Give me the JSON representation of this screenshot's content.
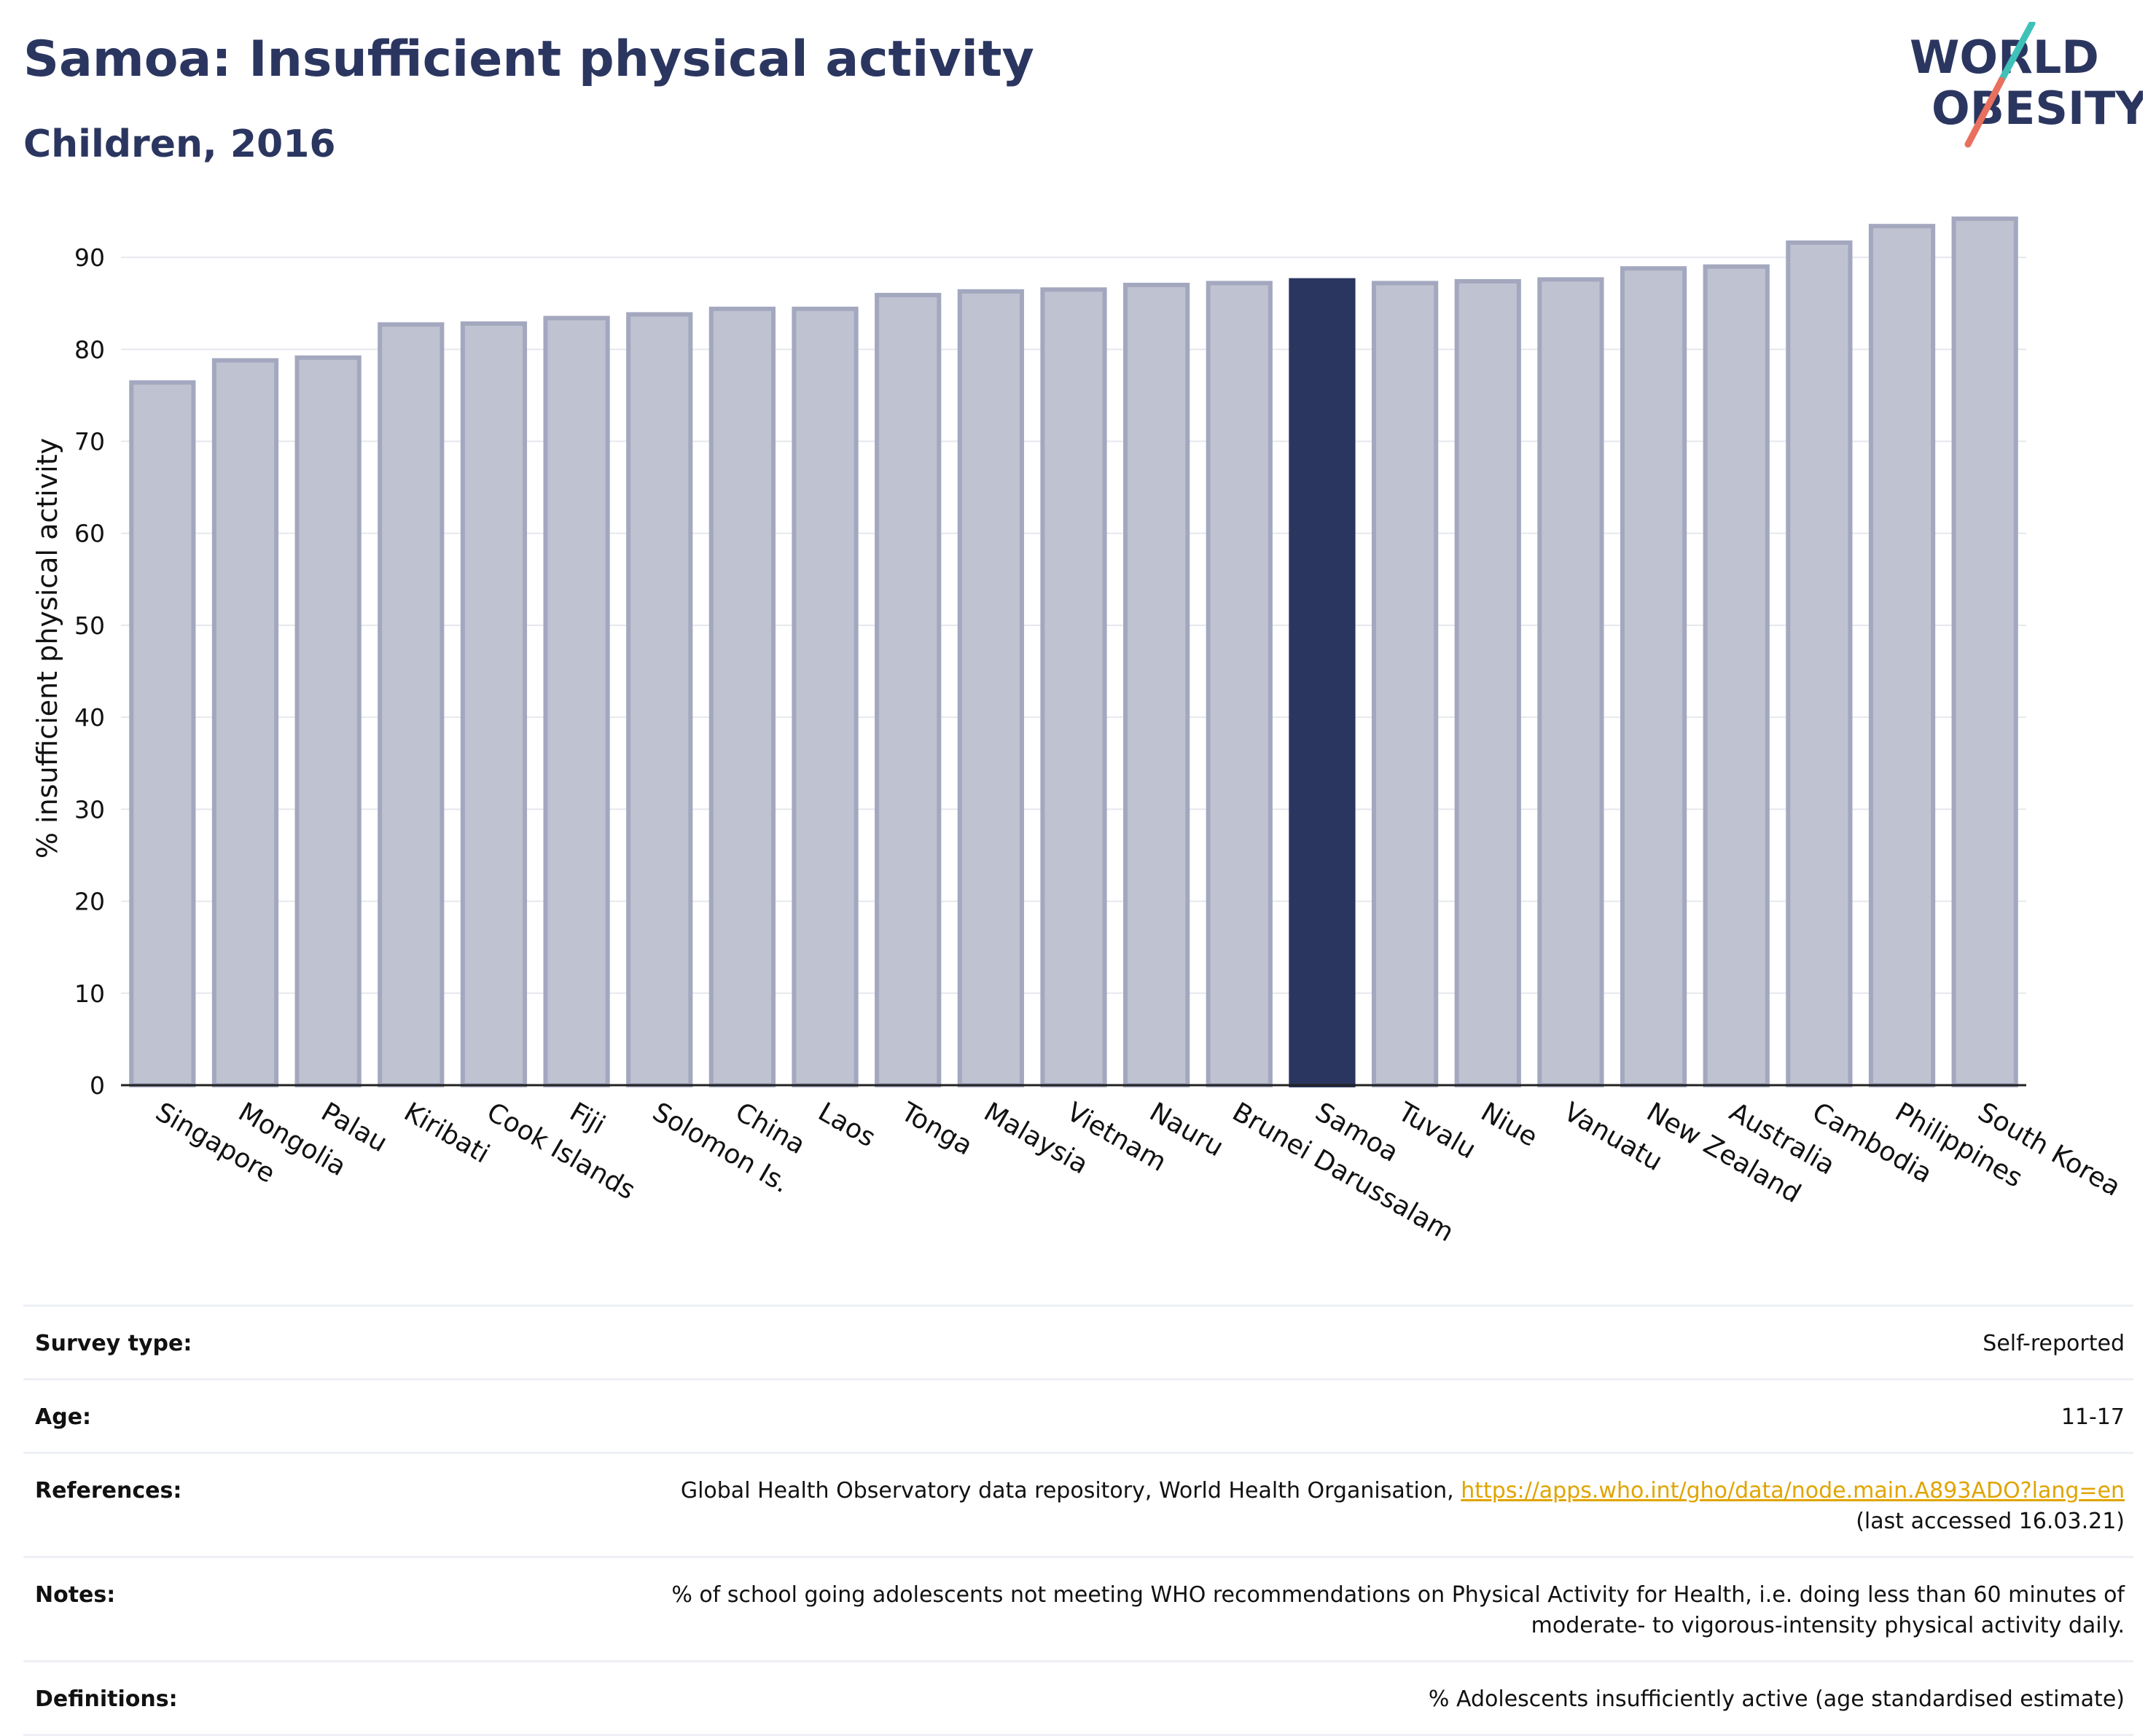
{
  "header": {
    "title": "Samoa: Insufficient physical activity",
    "subtitle": "Children, 2016",
    "logo_line1": "WORLD",
    "logo_line2": "OBESITY"
  },
  "colors": {
    "title": "#2b3660",
    "bar_default": "#bfc2d0",
    "bar_default_border": "#a3a8bf",
    "bar_highlight": "#2b3660",
    "logo_text": "#2b3660",
    "logo_teal": "#3ec1b8",
    "logo_coral": "#e8705e",
    "link": "#e0a400"
  },
  "chart_data": {
    "type": "bar",
    "ylabel": "% insufficient physical activity",
    "xlabel": "",
    "ylim": [
      0,
      95
    ],
    "yticks": [
      0,
      10,
      20,
      30,
      40,
      50,
      60,
      70,
      80,
      90
    ],
    "grid": true,
    "highlight": "Samoa",
    "categories": [
      "Singapore",
      "Mongolia",
      "Palau",
      "Kiribati",
      "Cook Islands",
      "Fiji",
      "Solomon Is.",
      "China",
      "Laos",
      "Tonga",
      "Malaysia",
      "Vietnam",
      "Nauru",
      "Brunei Darussalam",
      "Samoa",
      "Tuvalu",
      "Niue",
      "Vanuatu",
      "New Zealand",
      "Australia",
      "Cambodia",
      "Philippines",
      "South Korea"
    ],
    "values": [
      76.4,
      78.8,
      79.1,
      82.7,
      82.8,
      83.4,
      83.8,
      84.4,
      84.4,
      85.9,
      86.3,
      86.5,
      87.0,
      87.2,
      87.5,
      87.2,
      87.4,
      87.6,
      88.8,
      89.0,
      91.6,
      93.4,
      94.2
    ]
  },
  "info": {
    "survey_type": {
      "label": "Survey type:",
      "value": "Self-reported"
    },
    "age": {
      "label": "Age:",
      "value": "11-17"
    },
    "references": {
      "label": "References:",
      "text": "Global Health Observatory data repository, World Health Organisation,",
      "link": "https://apps.who.int/gho/data/node.main.A893ADO?lang=en",
      "accessed": "(last accessed 16.03.21)"
    },
    "notes": {
      "label": "Notes:",
      "line1": "% of school going adolescents not meeting WHO recommendations on Physical Activity for Health, i.e. doing less than 60 minutes of",
      "line2": "moderate- to vigorous-intensity physical activity daily."
    },
    "definitions": {
      "label": "Definitions:",
      "value": "% Adolescents insufficiently active (age standardised estimate)"
    }
  }
}
